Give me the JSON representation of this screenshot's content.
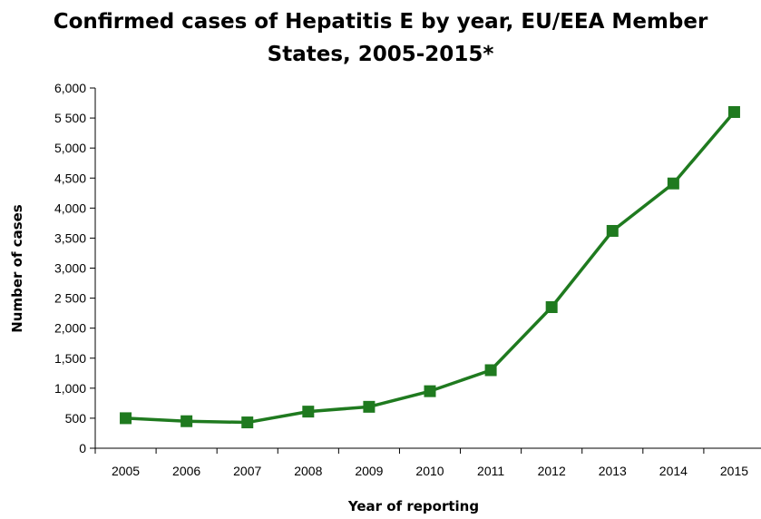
{
  "chart_data": {
    "type": "line",
    "title_lines": [
      "Confirmed cases of Hepatitis E by year, EU/EEA Member",
      "States, 2005-2015*"
    ],
    "xlabel": "Year of reporting",
    "ylabel": "Number of cases",
    "categories": [
      "2005",
      "2006",
      "2007",
      "2008",
      "2009",
      "2010",
      "2011",
      "2012",
      "2013",
      "2014",
      "2015"
    ],
    "series": [
      {
        "values": [
          500,
          450,
          430,
          610,
          690,
          950,
          1300,
          2350,
          3620,
          4410,
          5600
        ],
        "color": "#1f7a1f"
      }
    ],
    "ylim": [
      0,
      6000
    ],
    "y_ticks": [
      {
        "value": 0,
        "label": "0"
      },
      {
        "value": 500,
        "label": "500"
      },
      {
        "value": 1000,
        "label": "1,000"
      },
      {
        "value": 1500,
        "label": "1,500"
      },
      {
        "value": 2000,
        "label": "2,000"
      },
      {
        "value": 2500,
        "label": "2 500"
      },
      {
        "value": 3000,
        "label": "3,000"
      },
      {
        "value": 3500,
        "label": "3,500"
      },
      {
        "value": 4000,
        "label": "4,000"
      },
      {
        "value": 4500,
        "label": "4,500"
      },
      {
        "value": 5000,
        "label": "5,000"
      },
      {
        "value": 5500,
        "label": "5 500"
      },
      {
        "value": 6000,
        "label": "6,000"
      }
    ],
    "grid": false,
    "marker": "square"
  }
}
